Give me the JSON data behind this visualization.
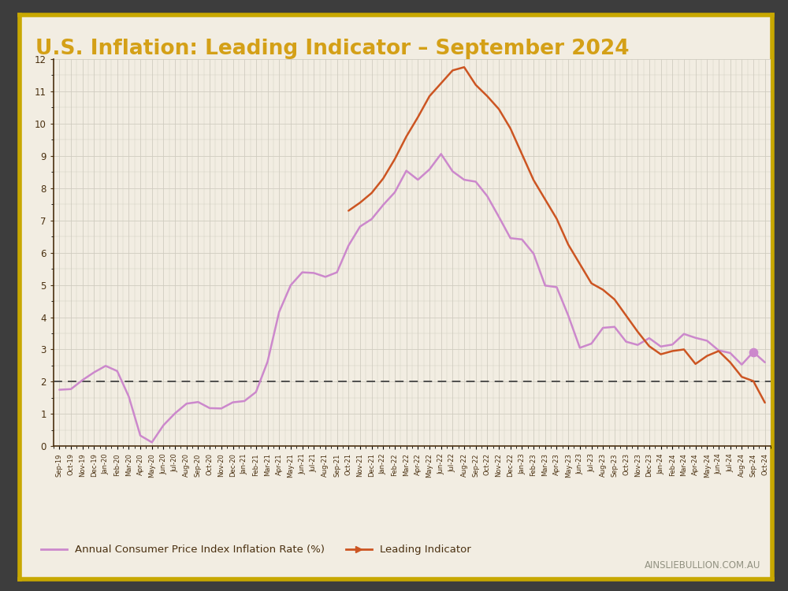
{
  "title": "U.S. Inflation: Leading Indicator – September 2024",
  "background_outer": "#3d3d3d",
  "background_inner": "#f2ede2",
  "border_color": "#c8a800",
  "title_color": "#d4a017",
  "grid_color": "#d0ccc0",
  "axis_color": "#4a3010",
  "tick_color": "#4a3010",
  "dashed_line_y": 2.0,
  "dashed_color": "#444444",
  "legend_cpi_label": "Annual Consumer Price Index Inflation Rate (%)",
  "legend_li_label": "Leading Indicator",
  "cpi_color": "#cc88cc",
  "li_color": "#cc5522",
  "ylim": [
    0,
    12
  ],
  "yticks": [
    0,
    1,
    2,
    3,
    4,
    5,
    6,
    7,
    8,
    9,
    10,
    11,
    12
  ],
  "x_labels": [
    "Sep-19",
    "Oct-19",
    "Nov-19",
    "Dec-19",
    "Jan-20",
    "Feb-20",
    "Mar-20",
    "Apr-20",
    "May-20",
    "Jun-20",
    "Jul-20",
    "Aug-20",
    "Sep-20",
    "Oct-20",
    "Nov-20",
    "Dec-20",
    "Jan-21",
    "Feb-21",
    "Mar-21",
    "Apr-21",
    "May-21",
    "Jun-21",
    "Jul-21",
    "Aug-21",
    "Sep-21",
    "Oct-21",
    "Nov-21",
    "Dec-21",
    "Jan-22",
    "Feb-22",
    "Mar-22",
    "Apr-22",
    "May-22",
    "Jun-22",
    "Jul-22",
    "Aug-22",
    "Sep-22",
    "Oct-22",
    "Nov-22",
    "Dec-22",
    "Jan-23",
    "Feb-23",
    "Mar-23",
    "Apr-23",
    "May-23",
    "Jun-23",
    "Jul-23",
    "Aug-23",
    "Sep-23",
    "Oct-23",
    "Nov-23",
    "Dec-23",
    "Jan-24",
    "Feb-24",
    "Mar-24",
    "Apr-24",
    "May-24",
    "Jun-24",
    "Jul-24",
    "Aug-24",
    "Sep-24",
    "Oct-24"
  ],
  "cpi_values": [
    1.75,
    1.77,
    2.05,
    2.29,
    2.49,
    2.33,
    1.54,
    0.33,
    0.12,
    0.65,
    1.02,
    1.32,
    1.37,
    1.18,
    1.17,
    1.36,
    1.4,
    1.68,
    2.62,
    4.16,
    4.99,
    5.39,
    5.37,
    5.25,
    5.39,
    6.22,
    6.81,
    7.04,
    7.48,
    7.87,
    8.54,
    8.26,
    8.58,
    9.06,
    8.52,
    8.26,
    8.2,
    7.75,
    7.11,
    6.45,
    6.41,
    5.97,
    4.98,
    4.93,
    4.05,
    3.05,
    3.18,
    3.67,
    3.7,
    3.24,
    3.14,
    3.35,
    3.09,
    3.15,
    3.48,
    3.36,
    3.27,
    2.97,
    2.89,
    2.53,
    2.92,
    2.6
  ],
  "li_values": [
    null,
    null,
    null,
    null,
    null,
    null,
    null,
    null,
    null,
    null,
    null,
    null,
    null,
    null,
    null,
    null,
    null,
    null,
    null,
    null,
    null,
    null,
    null,
    null,
    null,
    7.3,
    7.55,
    7.85,
    8.3,
    8.9,
    9.6,
    10.2,
    10.85,
    11.25,
    11.65,
    11.75,
    11.2,
    10.85,
    10.45,
    9.85,
    9.05,
    8.25,
    7.65,
    7.05,
    6.25,
    5.65,
    5.05,
    4.85,
    4.55,
    4.05,
    3.55,
    3.1,
    2.85,
    2.95,
    3.0,
    2.55,
    2.8,
    2.95,
    2.6,
    2.15,
    2.02,
    1.35
  ],
  "watermark_text": "AINSLIEBULLION.COM.AU"
}
